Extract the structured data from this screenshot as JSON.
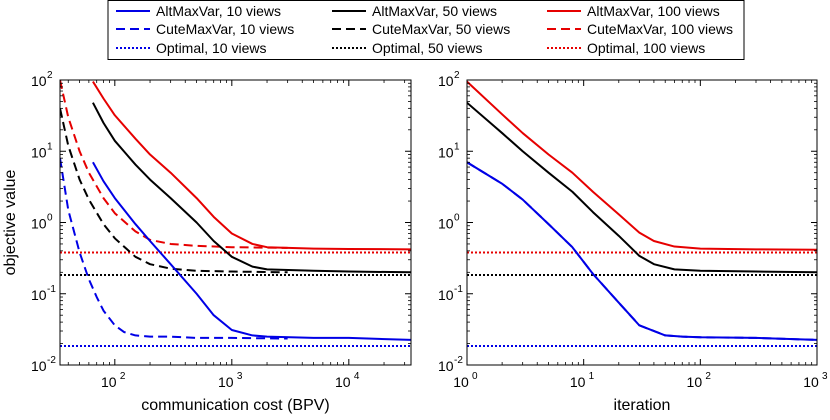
{
  "chart_data": {
    "type": "line",
    "legend": {
      "placement": "top-center",
      "entries": [
        {
          "label": "AltMaxVar, 10 views",
          "color": "#0000e6",
          "style": "solid"
        },
        {
          "label": "AltMaxVar, 50 views",
          "color": "#000000",
          "style": "solid"
        },
        {
          "label": "AltMaxVar, 100 views",
          "color": "#e60000",
          "style": "solid"
        },
        {
          "label": "CuteMaxVar, 10 views",
          "color": "#0000e6",
          "style": "dashed"
        },
        {
          "label": "CuteMaxVar, 50 views",
          "color": "#000000",
          "style": "dashed"
        },
        {
          "label": "CuteMaxVar, 100 views",
          "color": "#e60000",
          "style": "dashed"
        },
        {
          "label": "Optimal, 10 views",
          "color": "#0000e6",
          "style": "dotted"
        },
        {
          "label": "Optimal, 50 views",
          "color": "#000000",
          "style": "dotted"
        },
        {
          "label": "Optimal, 100 views",
          "color": "#e60000",
          "style": "dotted"
        }
      ]
    },
    "panels": [
      {
        "name": "left",
        "xlabel": "communication cost (BPV)",
        "ylabel": "objective value",
        "xscale": "log",
        "yscale": "log",
        "xlim": [
          34,
          34000
        ],
        "ylim": [
          0.01,
          100
        ],
        "xticks": [
          {
            "value": 100,
            "base": "10",
            "exp": "2"
          },
          {
            "value": 1000,
            "base": "10",
            "exp": "3"
          },
          {
            "value": 10000,
            "base": "10",
            "exp": "4"
          }
        ],
        "yticks": [
          {
            "value": 0.01,
            "base": "10",
            "exp": "-2"
          },
          {
            "value": 0.1,
            "base": "10",
            "exp": "-1"
          },
          {
            "value": 1,
            "base": "10",
            "exp": "0"
          },
          {
            "value": 10,
            "base": "10",
            "exp": "1"
          },
          {
            "value": 100,
            "base": "10",
            "exp": "2"
          }
        ],
        "series": [
          {
            "name": "Optimal, 10 views",
            "color": "#0000e6",
            "style": "dotted",
            "x": [
              34,
              34000
            ],
            "y": [
              0.0185,
              0.0185
            ]
          },
          {
            "name": "Optimal, 50 views",
            "color": "#000000",
            "style": "dotted",
            "x": [
              34,
              34000
            ],
            "y": [
              0.183,
              0.183
            ]
          },
          {
            "name": "Optimal, 100 views",
            "color": "#e60000",
            "style": "dotted",
            "x": [
              34,
              34000
            ],
            "y": [
              0.38,
              0.38
            ]
          },
          {
            "name": "CuteMaxVar, 10 views",
            "color": "#0000e6",
            "style": "dashed",
            "x": [
              34,
              40,
              50,
              60,
              70,
              80,
              100,
              120,
              150,
              200,
              300,
              500,
              1000,
              3000
            ],
            "y": [
              8,
              1.5,
              0.38,
              0.16,
              0.09,
              0.058,
              0.036,
              0.029,
              0.026,
              0.025,
              0.025,
              0.024,
              0.024,
              0.0235
            ]
          },
          {
            "name": "CuteMaxVar, 50 views",
            "color": "#000000",
            "style": "dashed",
            "x": [
              34,
              40,
              50,
              60,
              80,
              100,
              150,
              200,
              300,
              500,
              1000,
              3000
            ],
            "y": [
              40,
              12,
              4,
              2.1,
              0.95,
              0.6,
              0.33,
              0.26,
              0.225,
              0.21,
              0.205,
              0.2
            ]
          },
          {
            "name": "CuteMaxVar, 100 views",
            "color": "#e60000",
            "style": "dashed",
            "x": [
              34,
              40,
              50,
              60,
              80,
              100,
              150,
              200,
              300,
              500,
              1000,
              3000
            ],
            "y": [
              100,
              30,
              10,
              5,
              2.2,
              1.35,
              0.75,
              0.57,
              0.5,
              0.47,
              0.45,
              0.44
            ]
          },
          {
            "name": "AltMaxVar, 10 views",
            "color": "#0000e6",
            "style": "solid",
            "x": [
              65,
              80,
              100,
              150,
              200,
              300,
              500,
              700,
              1000,
              1500,
              2000,
              5000,
              10000,
              34000
            ],
            "y": [
              7,
              3.8,
              2.2,
              0.95,
              0.55,
              0.26,
              0.1,
              0.05,
              0.031,
              0.026,
              0.025,
              0.024,
              0.024,
              0.0225
            ]
          },
          {
            "name": "AltMaxVar, 50 views",
            "color": "#000000",
            "style": "solid",
            "x": [
              65,
              80,
              100,
              150,
              200,
              300,
              500,
              700,
              1000,
              1500,
              2000,
              5000,
              10000,
              34000
            ],
            "y": [
              48,
              25,
              14,
              6.5,
              4,
              2.2,
              1,
              0.55,
              0.33,
              0.24,
              0.22,
              0.21,
              0.205,
              0.2
            ]
          },
          {
            "name": "AltMaxVar, 100 views",
            "color": "#e60000",
            "style": "solid",
            "x": [
              65,
              80,
              100,
              150,
              200,
              300,
              500,
              700,
              1000,
              1500,
              2000,
              5000,
              10000,
              34000
            ],
            "y": [
              95,
              55,
              32,
              15,
              9,
              5,
              2.2,
              1.2,
              0.7,
              0.5,
              0.45,
              0.43,
              0.425,
              0.42
            ]
          }
        ]
      },
      {
        "name": "right",
        "xlabel": "iteration",
        "ylabel": "",
        "xscale": "log",
        "yscale": "log",
        "xlim": [
          1,
          1000
        ],
        "ylim": [
          0.01,
          100
        ],
        "xticks": [
          {
            "value": 1,
            "base": "10",
            "exp": "0"
          },
          {
            "value": 10,
            "base": "10",
            "exp": "1"
          },
          {
            "value": 100,
            "base": "10",
            "exp": "2"
          },
          {
            "value": 1000,
            "base": "10",
            "exp": "3"
          }
        ],
        "yticks": [
          {
            "value": 0.01,
            "base": "10",
            "exp": "-2"
          },
          {
            "value": 0.1,
            "base": "10",
            "exp": "-1"
          },
          {
            "value": 1,
            "base": "10",
            "exp": "0"
          },
          {
            "value": 10,
            "base": "10",
            "exp": "1"
          },
          {
            "value": 100,
            "base": "10",
            "exp": "2"
          }
        ],
        "series": [
          {
            "name": "Optimal, 10 views",
            "color": "#0000e6",
            "style": "dotted",
            "x": [
              1,
              1000
            ],
            "y": [
              0.0185,
              0.0185
            ]
          },
          {
            "name": "Optimal, 50 views",
            "color": "#000000",
            "style": "dotted",
            "x": [
              1,
              1000
            ],
            "y": [
              0.183,
              0.183
            ]
          },
          {
            "name": "Optimal, 100 views",
            "color": "#e60000",
            "style": "dotted",
            "x": [
              1,
              1000
            ],
            "y": [
              0.38,
              0.38
            ]
          },
          {
            "name": "CuteMaxVar, 10 views",
            "color": "#0000e6",
            "style": "dashed",
            "x": [
              1,
              2,
              3,
              5,
              8,
              12,
              20,
              30,
              50,
              70,
              100,
              300,
              1000
            ],
            "y": [
              7,
              3.5,
              2.1,
              0.95,
              0.45,
              0.19,
              0.075,
              0.036,
              0.026,
              0.025,
              0.0245,
              0.024,
              0.0225
            ]
          },
          {
            "name": "AltMaxVar, 10 views",
            "color": "#0000e6",
            "style": "solid",
            "x": [
              1,
              2,
              3,
              5,
              8,
              12,
              20,
              30,
              50,
              70,
              100,
              300,
              1000
            ],
            "y": [
              7,
              3.5,
              2.1,
              0.95,
              0.45,
              0.19,
              0.075,
              0.036,
              0.026,
              0.025,
              0.0245,
              0.024,
              0.0225
            ]
          },
          {
            "name": "AltMaxVar, 50 views",
            "color": "#000000",
            "style": "solid",
            "x": [
              1,
              2,
              3,
              5,
              8,
              12,
              20,
              30,
              40,
              60,
              100,
              300,
              1000
            ],
            "y": [
              48,
              18,
              10,
              5,
              2.7,
              1.4,
              0.65,
              0.34,
              0.26,
              0.22,
              0.21,
              0.205,
              0.2
            ]
          },
          {
            "name": "AltMaxVar, 100 views",
            "color": "#e60000",
            "style": "solid",
            "x": [
              1,
              2,
              3,
              5,
              8,
              12,
              20,
              30,
              40,
              60,
              100,
              300,
              1000
            ],
            "y": [
              95,
              33,
              18,
              9,
              5,
              2.7,
              1.3,
              0.72,
              0.55,
              0.46,
              0.43,
              0.42,
              0.415
            ]
          }
        ]
      }
    ]
  }
}
